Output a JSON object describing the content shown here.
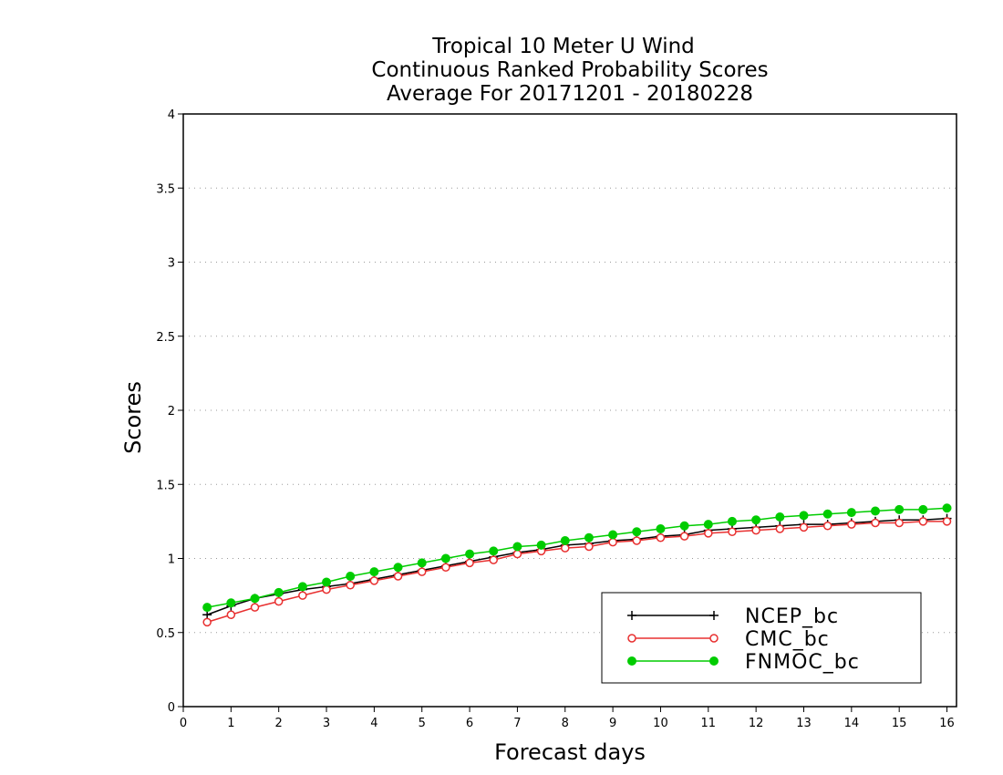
{
  "chart_data": {
    "type": "line",
    "title_lines": [
      "Tropical 10 Meter U Wind",
      "Continuous Ranked Probability Scores",
      "Average For 20171201 - 20180228"
    ],
    "xlabel": "Forecast days",
    "ylabel": "Scores",
    "xlim": [
      0,
      16.2
    ],
    "ylim": [
      0,
      4
    ],
    "xticks": [
      "0",
      "1",
      "2",
      "3",
      "4",
      "5",
      "6",
      "7",
      "8",
      "9",
      "10",
      "11",
      "12",
      "13",
      "14",
      "15",
      "16"
    ],
    "yticks": [
      "0",
      "0.5",
      "1",
      "1.5",
      "2",
      "2.5",
      "3",
      "3.5",
      "4"
    ],
    "grid": "horizontal dotted",
    "legend_position": "bottom-right",
    "x": [
      0.5,
      1,
      1.5,
      2,
      2.5,
      3,
      3.5,
      4,
      4.5,
      5,
      5.5,
      6,
      6.5,
      7,
      7.5,
      8,
      8.5,
      9,
      9.5,
      10,
      10.5,
      11,
      11.5,
      12,
      12.5,
      13,
      13.5,
      14,
      14.5,
      15,
      15.5,
      16
    ],
    "series": [
      {
        "name": "NCEP_bc",
        "color": "#000000",
        "marker": "plus",
        "values": [
          0.62,
          0.68,
          0.73,
          0.76,
          0.79,
          0.81,
          0.83,
          0.86,
          0.89,
          0.92,
          0.95,
          0.98,
          1.01,
          1.04,
          1.06,
          1.09,
          1.1,
          1.12,
          1.13,
          1.15,
          1.16,
          1.19,
          1.2,
          1.21,
          1.22,
          1.23,
          1.23,
          1.24,
          1.25,
          1.26,
          1.26,
          1.27
        ]
      },
      {
        "name": "CMC_bc",
        "color": "#e83030",
        "marker": "open-circle",
        "values": [
          0.57,
          0.62,
          0.67,
          0.71,
          0.75,
          0.79,
          0.82,
          0.85,
          0.88,
          0.91,
          0.94,
          0.97,
          0.99,
          1.03,
          1.05,
          1.07,
          1.08,
          1.11,
          1.12,
          1.14,
          1.15,
          1.17,
          1.18,
          1.19,
          1.2,
          1.21,
          1.22,
          1.23,
          1.24,
          1.24,
          1.25,
          1.25
        ]
      },
      {
        "name": "FNMOC_bc",
        "color": "#00cc00",
        "marker": "filled-circle",
        "values": [
          0.67,
          0.7,
          0.73,
          0.77,
          0.81,
          0.84,
          0.88,
          0.91,
          0.94,
          0.97,
          1.0,
          1.03,
          1.05,
          1.08,
          1.09,
          1.12,
          1.14,
          1.16,
          1.18,
          1.2,
          1.22,
          1.23,
          1.25,
          1.26,
          1.28,
          1.29,
          1.3,
          1.31,
          1.32,
          1.33,
          1.33,
          1.34
        ]
      }
    ]
  }
}
